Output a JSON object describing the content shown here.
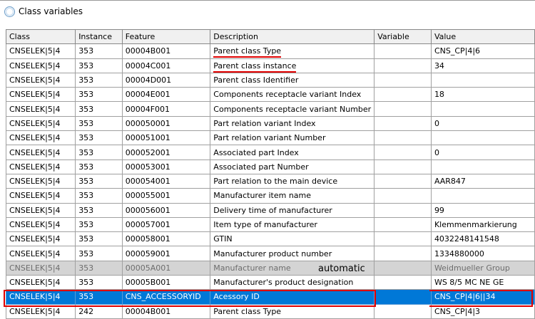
{
  "window": {
    "title": "Class variables"
  },
  "columns": [
    "Class",
    "Instance",
    "Feature",
    "Description",
    "Variable",
    "Value"
  ],
  "rows": [
    {
      "class": "CNSELEK|5|4",
      "instance": "353",
      "feature": "00004B001",
      "description": "Parent class Type",
      "variable": "",
      "value": "CNS_CP|4|6"
    },
    {
      "class": "CNSELEK|5|4",
      "instance": "353",
      "feature": "00004C001",
      "description": "Parent class instance",
      "variable": "",
      "value": "34"
    },
    {
      "class": "CNSELEK|5|4",
      "instance": "353",
      "feature": "00004D001",
      "description": "Parent class Identifier",
      "variable": "",
      "value": ""
    },
    {
      "class": "CNSELEK|5|4",
      "instance": "353",
      "feature": "00004E001",
      "description": "Components receptacle variant Index",
      "variable": "",
      "value": "18"
    },
    {
      "class": "CNSELEK|5|4",
      "instance": "353",
      "feature": "00004F001",
      "description": "Components receptacle variant Number",
      "variable": "",
      "value": ""
    },
    {
      "class": "CNSELEK|5|4",
      "instance": "353",
      "feature": "000050001",
      "description": "Part relation variant Index",
      "variable": "",
      "value": "0"
    },
    {
      "class": "CNSELEK|5|4",
      "instance": "353",
      "feature": "000051001",
      "description": "Part relation variant Number",
      "variable": "",
      "value": ""
    },
    {
      "class": "CNSELEK|5|4",
      "instance": "353",
      "feature": "000052001",
      "description": "Associated part Index",
      "variable": "",
      "value": "0"
    },
    {
      "class": "CNSELEK|5|4",
      "instance": "353",
      "feature": "000053001",
      "description": "Associated part Number",
      "variable": "",
      "value": ""
    },
    {
      "class": "CNSELEK|5|4",
      "instance": "353",
      "feature": "000054001",
      "description": "Part relation to the main device",
      "variable": "",
      "value": "AAR847"
    },
    {
      "class": "CNSELEK|5|4",
      "instance": "353",
      "feature": "000055001",
      "description": "Manufacturer item name",
      "variable": "",
      "value": ""
    },
    {
      "class": "CNSELEK|5|4",
      "instance": "353",
      "feature": "000056001",
      "description": "Delivery time of manufacturer",
      "variable": "",
      "value": "99"
    },
    {
      "class": "CNSELEK|5|4",
      "instance": "353",
      "feature": "000057001",
      "description": "Item type of manufacturer",
      "variable": "",
      "value": "Klemmenmarkierung"
    },
    {
      "class": "CNSELEK|5|4",
      "instance": "353",
      "feature": "000058001",
      "description": "GTIN",
      "variable": "",
      "value": "4032248141548"
    },
    {
      "class": "CNSELEK|5|4",
      "instance": "353",
      "feature": "000059001",
      "description": "Manufacturer product number",
      "variable": "",
      "value": "1334880000"
    },
    {
      "class": "CNSELEK|5|4",
      "instance": "353",
      "feature": "00005A001",
      "description": "Manufacturer name",
      "variable": "",
      "value": "Weidmueller Group"
    },
    {
      "class": "CNSELEK|5|4",
      "instance": "353",
      "feature": "00005B001",
      "description": "Manufacturer's product designation",
      "variable": "",
      "value": "WS 8/5 MC NE GE"
    },
    {
      "class": "CNSELEK|5|4",
      "instance": "353",
      "feature": "CNS_ACCESSORYID",
      "description": "Acessory ID",
      "variable": "",
      "value": "CNS_CP|4|6||34"
    },
    {
      "class": "CNSELEK|5|4",
      "instance": "242",
      "feature": "00004B001",
      "description": "Parent class Type",
      "variable": "",
      "value": "CNS_CP|4|3"
    }
  ],
  "annotation": "automatic",
  "state": {
    "selected_row": 17,
    "disabled_row": 15,
    "underlined_rows": [
      0,
      1
    ]
  },
  "colors": {
    "selection": "#0078d7",
    "highlight": "#e00000",
    "disabled_row": "#d4d4d4"
  }
}
